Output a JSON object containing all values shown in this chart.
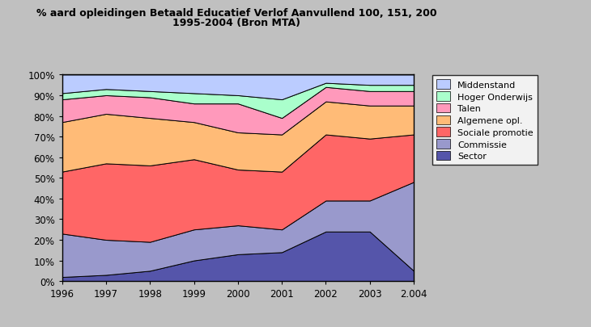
{
  "title_line1": "% aard opleidingen Betaald Educatief Verlof Aanvullend 100, 151, 200",
  "title_line2": "1995-2004 (Bron MTA)",
  "x_labels": [
    "1996",
    "1997",
    "1998",
    "1999",
    "2000",
    "2001",
    "2002",
    "2003",
    "2.004"
  ],
  "layers_bottom_to_top": [
    {
      "name": "Sector",
      "values": [
        2,
        3,
        5,
        10,
        13,
        14,
        24,
        24,
        5
      ],
      "color": "#5555aa"
    },
    {
      "name": "Commissie",
      "values": [
        21,
        17,
        14,
        15,
        14,
        11,
        15,
        15,
        43
      ],
      "color": "#9999cc"
    },
    {
      "name": "Sociale promotie",
      "values": [
        30,
        37,
        37,
        34,
        27,
        28,
        32,
        30,
        23
      ],
      "color": "#ff6666"
    },
    {
      "name": "Algemene opl.",
      "values": [
        24,
        24,
        23,
        18,
        18,
        18,
        16,
        16,
        14
      ],
      "color": "#ffbb77"
    },
    {
      "name": "Talen",
      "values": [
        11,
        9,
        10,
        9,
        14,
        8,
        7,
        7,
        7
      ],
      "color": "#ff99bb"
    },
    {
      "name": "Hoger Onderwijs",
      "values": [
        3,
        3,
        3,
        5,
        4,
        9,
        2,
        3,
        3
      ],
      "color": "#aaffcc"
    },
    {
      "name": "Middenstand",
      "values": [
        9,
        7,
        8,
        9,
        10,
        12,
        4,
        5,
        5
      ],
      "color": "#bbccff"
    }
  ],
  "background_color": "#c0c0c0",
  "plot_bg_color": "#d8d8d8",
  "border_3d_color": "#a0a0a0",
  "grid_color": "#000000",
  "legend_labels": [
    "Middenstand",
    "Hoger Onderwijs",
    "Talen",
    "Algemene opl.",
    "Sociale promotie",
    "Commissie",
    "Sector"
  ],
  "legend_colors": [
    "#bbccff",
    "#aaffcc",
    "#ff99bb",
    "#ffbb77",
    "#ff6666",
    "#9999cc",
    "#5555aa"
  ]
}
